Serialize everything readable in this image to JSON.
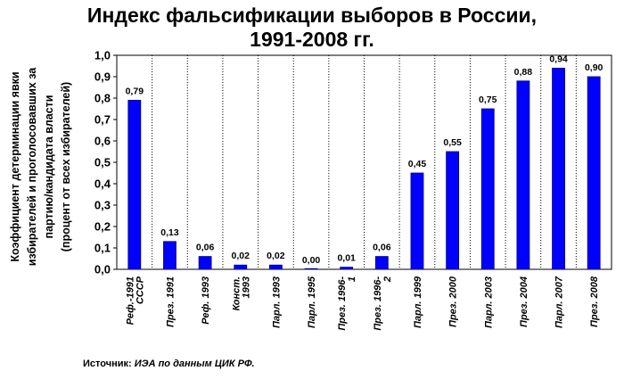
{
  "chart_data": {
    "type": "bar",
    "title_lines": [
      "Индекс фальсификации выборов в России,",
      "1991-2008 гг."
    ],
    "ylabel_lines": [
      "Коэффициент детерминации явки",
      "избирателей и проголосовавших за",
      "партию/кандидата власти",
      "(процент от всех избирателей)"
    ],
    "categories": [
      "Реф.-1991 СССР",
      "През. 1991",
      "Реф. 1993",
      "Конст. 1993",
      "Парл. 1993",
      "Парл. 1995",
      "През. 1996-1",
      "През. 1996-2",
      "Парл. 1999",
      "През. 2000",
      "Парл. 2003",
      "През. 2004",
      "Парл. 2007",
      "През. 2008"
    ],
    "category_label_lines": [
      [
        "Реф.-1991",
        "СССР"
      ],
      [
        "През. 1991"
      ],
      [
        "Реф. 1993"
      ],
      [
        "Конст.",
        "1993"
      ],
      [
        "Парл. 1993"
      ],
      [
        "Парл. 1995"
      ],
      [
        "През. 1996-",
        "1"
      ],
      [
        "През. 1996-",
        "2"
      ],
      [
        "Парл. 1999"
      ],
      [
        "През. 2000"
      ],
      [
        "Парл. 2003"
      ],
      [
        "През. 2004"
      ],
      [
        "Парл. 2007"
      ],
      [
        "През. 2008"
      ]
    ],
    "values": [
      0.79,
      0.13,
      0.06,
      0.02,
      0.02,
      0.0,
      0.01,
      0.06,
      0.45,
      0.55,
      0.75,
      0.88,
      0.94,
      0.9
    ],
    "value_labels": [
      "0,79",
      "0,13",
      "0,06",
      "0,02",
      "0,02",
      "0,00",
      "0,01",
      "0,06",
      "0,45",
      "0,55",
      "0,75",
      "0,88",
      "0,94",
      "0,90"
    ],
    "yticks": [
      0,
      0.1,
      0.2,
      0.3,
      0.4,
      0.5,
      0.6,
      0.7,
      0.8,
      0.9,
      1.0
    ],
    "ytick_labels": [
      "0,0",
      "0,1",
      "0,2",
      "0,3",
      "0,4",
      "0,5",
      "0,6",
      "0,7",
      "0,8",
      "0,9",
      "1,0"
    ],
    "ylim": [
      0,
      1.0
    ],
    "grid": "vertical dotted lines between categories",
    "legend": "none",
    "bar_color": "#0000ff",
    "bar_edge_color": "#000080"
  },
  "source": {
    "prefix": "Источник:",
    "body": "ИЭА по данным ЦИК РФ."
  }
}
